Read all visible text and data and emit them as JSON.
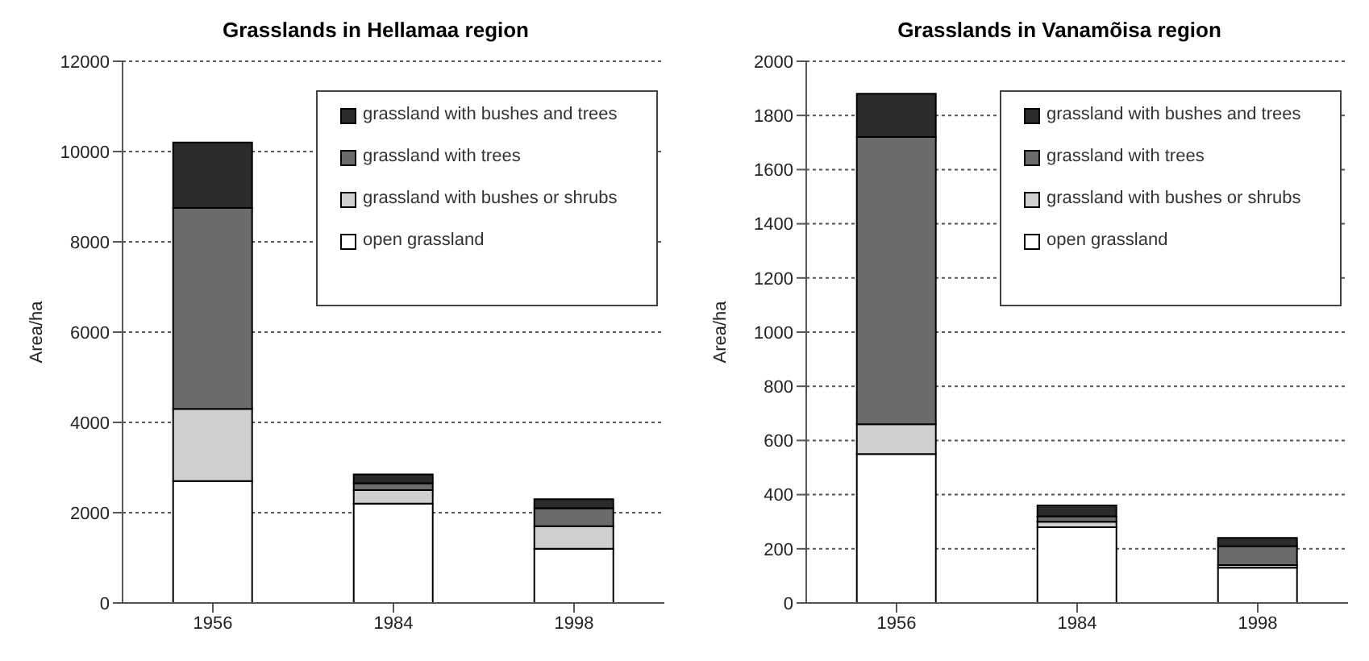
{
  "chart_data": [
    {
      "type": "bar",
      "title": "Grasslands in Hellamaa region",
      "ylabel": "Area/ha",
      "stacked": true,
      "categories": [
        "1956",
        "1984",
        "1998"
      ],
      "series": [
        {
          "name": "open grassland",
          "color": "#ffffff",
          "values": [
            2700,
            2200,
            1200
          ]
        },
        {
          "name": "grassland with bushes or shrubs",
          "color": "#cfcfcf",
          "values": [
            1600,
            300,
            500
          ]
        },
        {
          "name": "grassland with trees",
          "color": "#6b6b6b",
          "values": [
            4450,
            150,
            400
          ]
        },
        {
          "name": "grassland with bushes and trees",
          "color": "#2b2b2b",
          "values": [
            1450,
            200,
            200
          ]
        }
      ],
      "ylim": [
        0,
        12000
      ],
      "yticks": [
        0,
        2000,
        4000,
        6000,
        8000,
        10000,
        12000
      ],
      "grid": "y",
      "legend": "top right"
    },
    {
      "type": "bar",
      "title": "Grasslands in Vanamõisa region",
      "ylabel": "Area/ha",
      "stacked": true,
      "categories": [
        "1956",
        "1984",
        "1998"
      ],
      "series": [
        {
          "name": "open grassland",
          "color": "#ffffff",
          "values": [
            550,
            280,
            130
          ]
        },
        {
          "name": "grassland with bushes or shrubs",
          "color": "#cfcfcf",
          "values": [
            110,
            20,
            10
          ]
        },
        {
          "name": "grassland with trees",
          "color": "#6b6b6b",
          "values": [
            1060,
            20,
            70
          ]
        },
        {
          "name": "grassland with bushes and trees",
          "color": "#2b2b2b",
          "values": [
            160,
            40,
            30
          ]
        }
      ],
      "ylim": [
        0,
        2000
      ],
      "yticks": [
        0,
        200,
        400,
        600,
        800,
        1000,
        1200,
        1400,
        1600,
        1800,
        2000
      ],
      "grid": "y",
      "legend": "top right"
    }
  ]
}
